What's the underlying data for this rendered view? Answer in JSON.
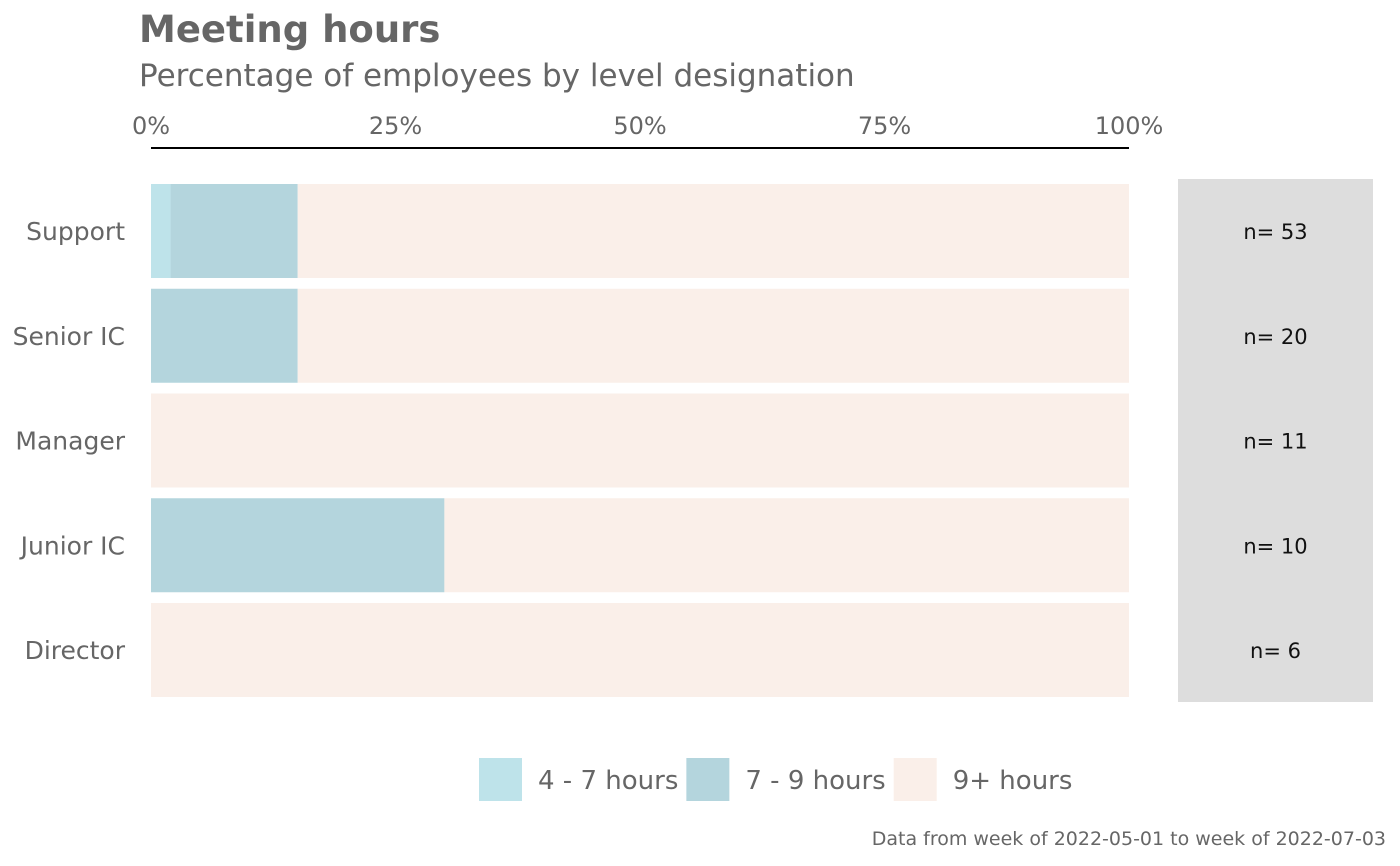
{
  "title": "Meeting hours",
  "subtitle": "Percentage of employees by level designation",
  "caption": "Data from week of 2022-05-01 to week of 2022-07-03",
  "chart_data": {
    "type": "bar",
    "orientation": "horizontal",
    "stacked": true,
    "x_axis_position": "top",
    "xlim": [
      0,
      100
    ],
    "x_ticks": [
      0,
      25,
      50,
      75,
      100
    ],
    "x_tick_labels": [
      "0%",
      "25%",
      "50%",
      "75%",
      "100%"
    ],
    "categories": [
      "Support",
      "Senior IC",
      "Manager",
      "Junior IC",
      "Director"
    ],
    "series": [
      {
        "name": "4 - 7 hours",
        "color": "#bee3ea",
        "values": [
          2,
          0,
          0,
          0,
          0
        ]
      },
      {
        "name": "7 - 9 hours",
        "color": "#b4d5dd",
        "values": [
          13,
          15,
          0,
          30,
          0
        ]
      },
      {
        "name": "9+ hours",
        "color": "#faefe9",
        "values": [
          85,
          85,
          100,
          70,
          100
        ]
      }
    ],
    "counts": [
      "n= 53",
      "n= 20",
      "n= 11",
      "n= 10",
      "n= 6"
    ],
    "count_panel_color": "#dddddd",
    "legend_position": "bottom"
  }
}
